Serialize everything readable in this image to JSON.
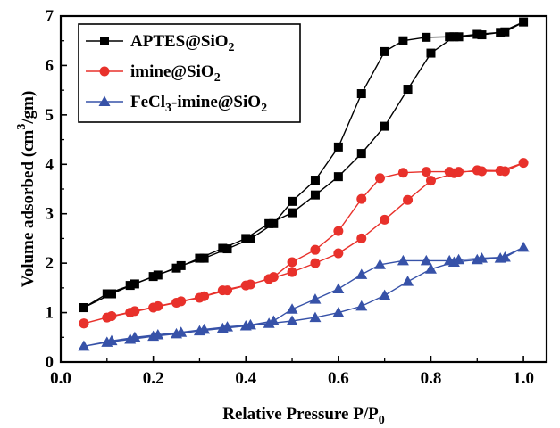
{
  "chart_data": {
    "type": "line",
    "xlabel": "Relative Pressure P/P",
    "xlabel_sub": "0",
    "ylabel": "Volume adsorbed (cm",
    "ylabel_sup": "3",
    "ylabel_end": "/gm)",
    "xlim": [
      0.0,
      1.05
    ],
    "ylim": [
      0,
      7
    ],
    "x_ticks": [
      "0.0",
      "0.2",
      "0.4",
      "0.6",
      "0.8",
      "1.0"
    ],
    "y_ticks": [
      "0",
      "1",
      "2",
      "3",
      "4",
      "5",
      "6",
      "7"
    ],
    "grid": false,
    "legend_position": "top-left",
    "series": [
      {
        "name": "APTES@SiO",
        "name_sub": "2",
        "name_tail": "",
        "color": "#000000",
        "marker": "square",
        "x": [
          0.05,
          0.1,
          0.15,
          0.2,
          0.25,
          0.3,
          0.35,
          0.4,
          0.45,
          0.5,
          0.55,
          0.6,
          0.65,
          0.7,
          0.75,
          0.8,
          0.85,
          0.9,
          0.95,
          1.0,
          0.96,
          0.91,
          0.86,
          0.84,
          0.79,
          0.74,
          0.7,
          0.65,
          0.6,
          0.55,
          0.5,
          0.46,
          0.41,
          0.36,
          0.31,
          0.26,
          0.21,
          0.16,
          0.11,
          0.05
        ],
        "y": [
          1.1,
          1.38,
          1.55,
          1.73,
          1.9,
          2.1,
          2.3,
          2.5,
          2.8,
          3.02,
          3.38,
          3.75,
          4.22,
          4.77,
          5.52,
          6.25,
          6.58,
          6.63,
          6.67,
          6.88,
          6.68,
          6.62,
          6.58,
          6.58,
          6.57,
          6.5,
          6.28,
          5.43,
          4.35,
          3.68,
          3.25,
          2.8,
          2.49,
          2.29,
          2.1,
          1.95,
          1.76,
          1.58,
          1.38,
          1.1
        ]
      },
      {
        "name": "imine@SiO",
        "name_sub": "2",
        "name_tail": "",
        "color": "#e8312b",
        "marker": "circle",
        "x": [
          0.05,
          0.1,
          0.15,
          0.2,
          0.25,
          0.3,
          0.35,
          0.4,
          0.45,
          0.5,
          0.55,
          0.6,
          0.65,
          0.7,
          0.75,
          0.8,
          0.85,
          0.9,
          0.95,
          1.0,
          0.96,
          0.91,
          0.86,
          0.84,
          0.79,
          0.74,
          0.69,
          0.65,
          0.6,
          0.55,
          0.5,
          0.46,
          0.41,
          0.36,
          0.31,
          0.26,
          0.21,
          0.16,
          0.11,
          0.05
        ],
        "y": [
          0.78,
          0.9,
          1.0,
          1.1,
          1.2,
          1.3,
          1.45,
          1.55,
          1.68,
          1.82,
          2.0,
          2.2,
          2.5,
          2.88,
          3.28,
          3.67,
          3.82,
          3.88,
          3.87,
          4.03,
          3.86,
          3.86,
          3.85,
          3.85,
          3.85,
          3.83,
          3.72,
          3.3,
          2.65,
          2.27,
          2.02,
          1.72,
          1.57,
          1.45,
          1.33,
          1.23,
          1.13,
          1.03,
          0.93,
          0.78
        ]
      },
      {
        "name": "FeCl",
        "name_sub": "3",
        "name_tail": "-imine@SiO",
        "name_sub2": "2",
        "color": "#3752a8",
        "marker": "triangle",
        "x": [
          0.05,
          0.1,
          0.15,
          0.2,
          0.25,
          0.3,
          0.35,
          0.4,
          0.45,
          0.5,
          0.55,
          0.6,
          0.65,
          0.7,
          0.75,
          0.8,
          0.85,
          0.9,
          0.95,
          1.0,
          0.96,
          0.91,
          0.86,
          0.84,
          0.79,
          0.74,
          0.69,
          0.65,
          0.6,
          0.55,
          0.5,
          0.46,
          0.41,
          0.36,
          0.31,
          0.26,
          0.21,
          0.16,
          0.11,
          0.05
        ],
        "y": [
          0.32,
          0.4,
          0.46,
          0.52,
          0.57,
          0.63,
          0.68,
          0.73,
          0.78,
          0.83,
          0.9,
          1.0,
          1.13,
          1.35,
          1.63,
          1.88,
          2.02,
          2.07,
          2.1,
          2.32,
          2.12,
          2.1,
          2.07,
          2.05,
          2.05,
          2.05,
          1.97,
          1.77,
          1.48,
          1.27,
          1.07,
          0.83,
          0.75,
          0.71,
          0.66,
          0.6,
          0.55,
          0.5,
          0.43,
          0.32
        ]
      }
    ]
  }
}
